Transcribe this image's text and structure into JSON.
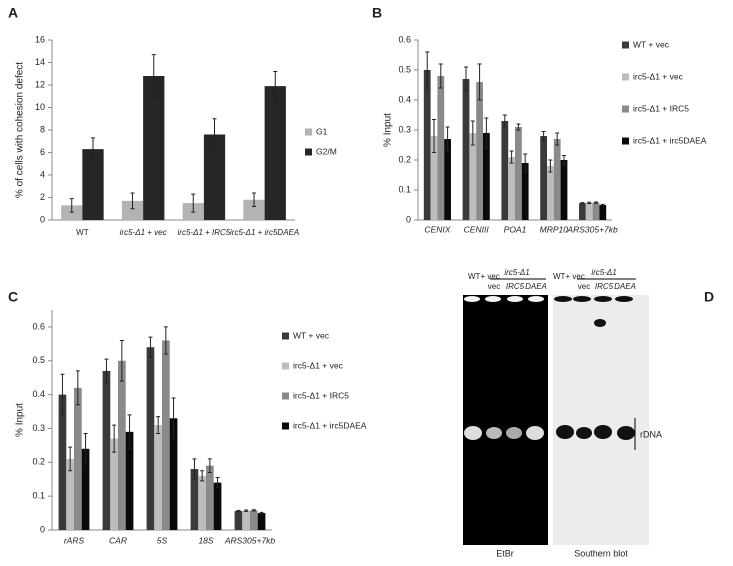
{
  "chart_data": [
    {
      "type": "bar",
      "panel": "A",
      "y_label": "% of cells with cohesion defect",
      "categories": [
        "WT",
        "irc5-Δ1 + vec",
        "irc5-Δ1 + IRC5",
        "irc5-Δ1 + irc5DAEA"
      ],
      "series": [
        {
          "name": "G1",
          "color": "#b3b3b3",
          "values": [
            1.3,
            1.7,
            1.5,
            1.8
          ],
          "errors": [
            0.6,
            0.7,
            0.8,
            0.6
          ]
        },
        {
          "name": "G2/M",
          "color": "#262626",
          "values": [
            6.3,
            12.8,
            7.6,
            11.9
          ],
          "errors": [
            1.0,
            1.9,
            1.4,
            1.3
          ]
        }
      ],
      "ylim": [
        0,
        16
      ],
      "yticks": [
        0,
        2,
        4,
        6,
        8,
        10,
        12,
        14,
        16
      ],
      "legend": "right"
    },
    {
      "type": "bar",
      "panel": "B",
      "y_label": "% Input",
      "categories": [
        "CENIX",
        "CENIII",
        "POA1",
        "MRP10",
        "ARS305+7kb"
      ],
      "series": [
        {
          "name": "WT + vec",
          "color": "#3a3a3a",
          "values": [
            0.5,
            0.47,
            0.33,
            0.28,
            0.056
          ],
          "errors": [
            0.06,
            0.04,
            0.02,
            0.015,
            0.002
          ]
        },
        {
          "name": "irc5-Δ1 + vec",
          "color": "#bdbdbd",
          "values": [
            0.28,
            0.29,
            0.21,
            0.18,
            0.057
          ],
          "errors": [
            0.055,
            0.04,
            0.02,
            0.02,
            0.002
          ]
        },
        {
          "name": "irc5-Δ1 + IRC5",
          "color": "#8a8a8a",
          "values": [
            0.48,
            0.46,
            0.31,
            0.27,
            0.058
          ],
          "errors": [
            0.04,
            0.06,
            0.01,
            0.02,
            0.002
          ]
        },
        {
          "name": "irc5-Δ1 + irc5DAEA",
          "color": "#0a0a0a",
          "values": [
            0.27,
            0.29,
            0.19,
            0.2,
            0.05
          ],
          "errors": [
            0.04,
            0.05,
            0.03,
            0.015,
            0.002
          ]
        }
      ],
      "ylim": [
        0,
        0.6
      ],
      "yticks": [
        0,
        0.1,
        0.2,
        0.3,
        0.4,
        0.5,
        0.6
      ],
      "legend": "right"
    },
    {
      "type": "bar",
      "panel": "C",
      "y_label": "% Input",
      "categories": [
        "rARS",
        "CAR",
        "5S",
        "18S",
        "ARS305+7kb"
      ],
      "series": [
        {
          "name": "WT + vec",
          "color": "#3a3a3a",
          "values": [
            0.4,
            0.47,
            0.54,
            0.18,
            0.056
          ],
          "errors": [
            0.06,
            0.035,
            0.03,
            0.03,
            0.002
          ]
        },
        {
          "name": "irc5-Δ1 + vec",
          "color": "#bdbdbd",
          "values": [
            0.21,
            0.27,
            0.31,
            0.16,
            0.057
          ],
          "errors": [
            0.035,
            0.04,
            0.025,
            0.015,
            0.002
          ]
        },
        {
          "name": "irc5-Δ1 + IRC5",
          "color": "#8a8a8a",
          "values": [
            0.42,
            0.5,
            0.56,
            0.19,
            0.058
          ],
          "errors": [
            0.05,
            0.06,
            0.04,
            0.02,
            0.002
          ]
        },
        {
          "name": "irc5-Δ1 + irc5DAEA",
          "color": "#0a0a0a",
          "values": [
            0.24,
            0.29,
            0.33,
            0.14,
            0.05
          ],
          "errors": [
            0.045,
            0.05,
            0.06,
            0.015,
            0.002
          ]
        }
      ],
      "ylim": [
        0,
        0.65
      ],
      "yticks": [
        0,
        0.1,
        0.2,
        0.3,
        0.4,
        0.5,
        0.6
      ],
      "legend": "right"
    }
  ],
  "gel": {
    "panel": "D",
    "wt_label": "WT+ vec",
    "mutant_label": "irc5-Δ1",
    "lanes": [
      "vec",
      "IRC5",
      "DAEA"
    ],
    "band_label": "rDNA",
    "left_caption": "EtBr",
    "right_caption": "Southern blot"
  }
}
